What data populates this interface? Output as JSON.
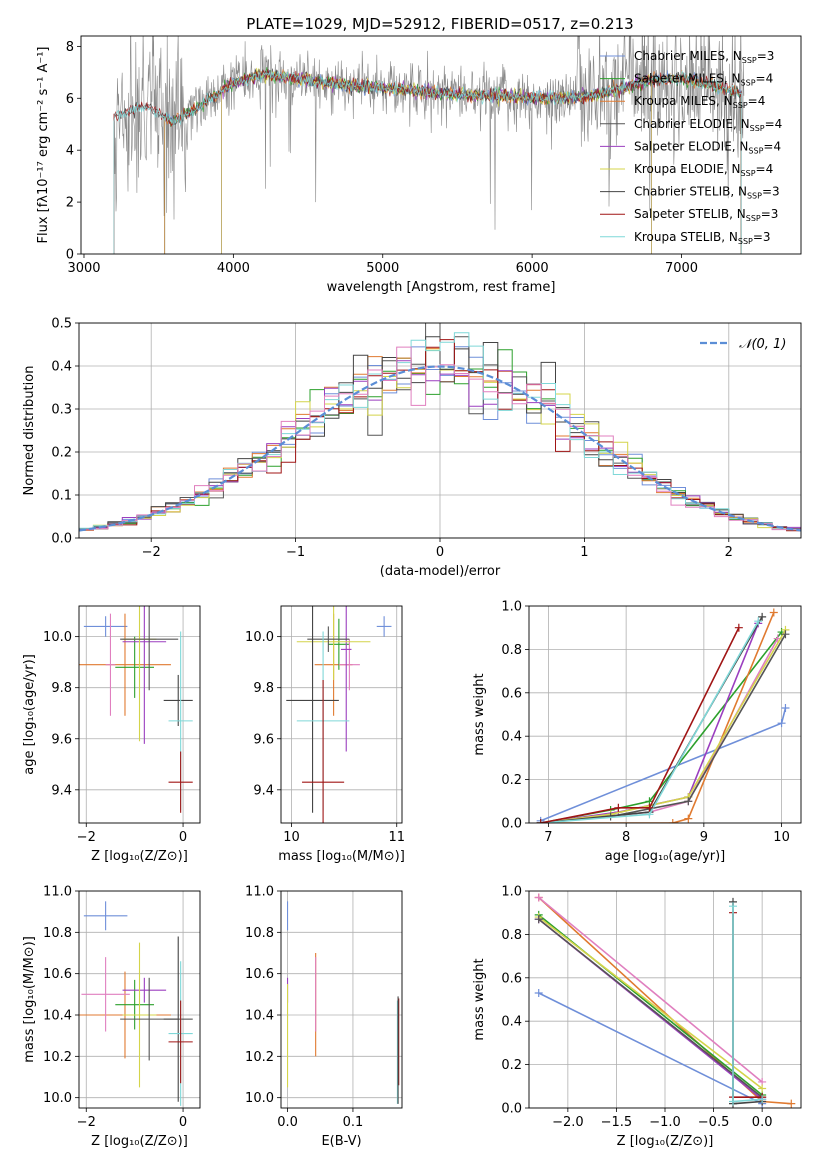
{
  "figure_title": "PLATE=1029, MJD=52912, FIBERID=0517, z=0.213",
  "colors": {
    "chabrier_miles": "#6f8fd9",
    "salpeter_miles": "#2ca02c",
    "kroupa_miles": "#e07a30",
    "chabrier_elodie": "#555555",
    "salpeter_elodie": "#9b3fbf",
    "kroupa_elodie": "#d4d44a",
    "chabrier_stelib": "#444444",
    "salpeter_stelib": "#a01515",
    "kroupa_stelib": "#7fd8d8",
    "pink": "#e07fbf",
    "spectrum_gray": "#888888",
    "gaussian": "#5b8ed6",
    "grid": "#b0b0b0"
  },
  "chart_data": [
    {
      "id": "spectrum",
      "type": "line",
      "title": "PLATE=1029, MJD=52912, FIBERID=0517, z=0.213",
      "xlabel": "wavelength [Angstrom, rest frame]",
      "ylabel": "Flux [fλ10⁻¹⁷ erg cm⁻² s⁻¹ A⁻¹]",
      "xlim": [
        2980,
        7800
      ],
      "ylim": [
        0,
        8.4
      ],
      "xticks": [
        "3000",
        "4000",
        "5000",
        "6000",
        "7000"
      ],
      "xtick_values": [
        3000,
        4000,
        5000,
        6000,
        7000
      ],
      "yticks": [
        "0",
        "2",
        "4",
        "6",
        "8"
      ],
      "ytick_values": [
        0,
        2,
        4,
        6,
        8
      ],
      "grid": false,
      "legend_position": "upper-right",
      "series": [
        {
          "name": "Chabrier MILES, N_SSP=3",
          "start": 3540,
          "end": 7400
        },
        {
          "name": "Salpeter MILES, N_SSP=4",
          "start": 3540,
          "end": 7400
        },
        {
          "name": "Kroupa MILES, N_SSP=4",
          "start": 3540,
          "end": 7400
        },
        {
          "name": "Chabrier ELODIE, N_SSP=4",
          "start": 3920,
          "end": 6800
        },
        {
          "name": "Salpeter ELODIE, N_SSP=4",
          "start": 3920,
          "end": 6800
        },
        {
          "name": "Kroupa ELODIE, N_SSP=4",
          "start": 3920,
          "end": 6800
        },
        {
          "name": "Chabrier STELIB, N_SSP=3",
          "start": 3200,
          "end": 7400
        },
        {
          "name": "Salpeter STELIB, N_SSP=3",
          "start": 3200,
          "end": 7400
        },
        {
          "name": "Kroupa STELIB, N_SSP=3",
          "start": 3200,
          "end": 7400
        }
      ],
      "continuum": [
        [
          3200,
          5.3
        ],
        [
          3400,
          5.7
        ],
        [
          3600,
          5.1
        ],
        [
          3800,
          5.8
        ],
        [
          4000,
          6.6
        ],
        [
          4200,
          6.9
        ],
        [
          4400,
          6.8
        ],
        [
          4600,
          6.6
        ],
        [
          4800,
          6.5
        ],
        [
          5000,
          6.4
        ],
        [
          5200,
          6.3
        ],
        [
          5400,
          6.2
        ],
        [
          5600,
          6.1
        ],
        [
          5800,
          6.1
        ],
        [
          6000,
          6.0
        ],
        [
          6200,
          6.0
        ],
        [
          6400,
          6.1
        ],
        [
          6600,
          6.4
        ],
        [
          6800,
          6.7
        ],
        [
          7000,
          6.8
        ],
        [
          7200,
          6.5
        ],
        [
          7400,
          6.2
        ]
      ],
      "observed_noise_amplitude": 0.55
    },
    {
      "id": "residuals",
      "type": "histogram",
      "xlabel": "(data-model)/error",
      "ylabel": "Normed distribution",
      "xlim": [
        -2.5,
        2.5
      ],
      "ylim": [
        0,
        0.5
      ],
      "xticks": [
        "−2",
        "−1",
        "0",
        "1",
        "2"
      ],
      "xtick_values": [
        -2,
        -1,
        0,
        1,
        2
      ],
      "yticks": [
        "0.0",
        "0.1",
        "0.2",
        "0.3",
        "0.4",
        "0.5"
      ],
      "ytick_values": [
        0,
        0.1,
        0.2,
        0.3,
        0.4,
        0.5
      ],
      "grid": true,
      "legend": [
        {
          "name": "𝒩(0, 1)"
        }
      ],
      "legend_position": "upper-right",
      "bin_width": 0.1,
      "n_bins": 50
    },
    {
      "id": "age_vs_Z",
      "type": "errorbar",
      "xlabel": "Z [log₁₀(Z/Z⊙)]",
      "ylabel": "age  [log₁₀(age/yr)]",
      "xlim": [
        -2.15,
        0.35
      ],
      "ylim": [
        9.27,
        10.12
      ],
      "xticks": [
        "−2",
        "0"
      ],
      "xtick_values": [
        -2,
        0
      ],
      "yticks": [
        "9.4",
        "9.6",
        "9.8",
        "10.0"
      ],
      "ytick_values": [
        9.4,
        9.6,
        9.8,
        10.0
      ],
      "grid": true,
      "points": [
        {
          "c": "chabrier_miles",
          "x": -1.6,
          "xe": 0.45,
          "y": 10.04,
          "ye": 0.04
        },
        {
          "c": "kroupa_miles",
          "x": -1.2,
          "xe": 0.95,
          "y": 9.89,
          "ye": 0.2
        },
        {
          "c": "salpeter_miles",
          "x": -1.0,
          "xe": 0.4,
          "y": 9.88,
          "ye": 0.12
        },
        {
          "c": "pink",
          "x": -1.5,
          "xe": 0.1,
          "y": 9.89,
          "ye": 0.2
        },
        {
          "c": "salpeter_elodie",
          "x": -0.8,
          "xe": 0.45,
          "y": 9.98,
          "ye": 0.4
        },
        {
          "c": "kroupa_elodie",
          "x": -0.9,
          "xe": 0.35,
          "y": 9.99,
          "ye": 0.4
        },
        {
          "c": "chabrier_elodie",
          "x": -0.7,
          "xe": 0.6,
          "y": 9.99,
          "ye": 0.2
        },
        {
          "c": "chabrier_stelib",
          "x": -0.1,
          "xe": 0.3,
          "y": 9.75,
          "ye": 0.1
        },
        {
          "c": "kroupa_stelib",
          "x": -0.05,
          "xe": 0.25,
          "y": 9.67,
          "ye": 0.35
        },
        {
          "c": "salpeter_stelib",
          "x": -0.05,
          "xe": 0.25,
          "y": 9.43,
          "ye": 0.12
        }
      ]
    },
    {
      "id": "age_vs_mass",
      "type": "errorbar",
      "xlabel": "mass [log₁₀(M/M⊙)]",
      "ylabel": "",
      "xlim": [
        9.9,
        11.05
      ],
      "ylim": [
        9.27,
        10.12
      ],
      "xticks": [
        "10",
        "11"
      ],
      "xtick_values": [
        10,
        11
      ],
      "yticks": [
        "9.4",
        "9.6",
        "9.8",
        "10.0"
      ],
      "ytick_values": [
        9.4,
        9.6,
        9.8,
        10.0
      ],
      "grid": true,
      "points": [
        {
          "c": "chabrier_miles",
          "x": 10.88,
          "xe": 0.07,
          "y": 10.04,
          "ye": 0.04
        },
        {
          "c": "kroupa_miles",
          "x": 10.4,
          "xe": 0.18,
          "y": 9.89,
          "ye": 0.2
        },
        {
          "c": "salpeter_miles",
          "x": 10.45,
          "xe": 0.1,
          "y": 9.97,
          "ye": 0.1
        },
        {
          "c": "pink",
          "x": 10.55,
          "xe": 0.1,
          "y": 9.89,
          "ye": 0.1
        },
        {
          "c": "salpeter_elodie",
          "x": 10.52,
          "xe": 0.05,
          "y": 9.95,
          "ye": 0.4
        },
        {
          "c": "kroupa_elodie",
          "x": 10.4,
          "xe": 0.35,
          "y": 9.98,
          "ye": 0.15
        },
        {
          "c": "chabrier_elodie",
          "x": 10.35,
          "xe": 0.2,
          "y": 9.99,
          "ye": 0.05
        },
        {
          "c": "chabrier_stelib",
          "x": 10.2,
          "xe": 0.25,
          "y": 9.75,
          "ye": 0.44
        },
        {
          "c": "kroupa_stelib",
          "x": 10.3,
          "xe": 0.25,
          "y": 9.67,
          "ye": 0.35
        },
        {
          "c": "salpeter_stelib",
          "x": 10.3,
          "xe": 0.2,
          "y": 9.43,
          "ye": 0.4
        }
      ]
    },
    {
      "id": "weight_vs_age",
      "type": "line",
      "xlabel": "age  [log₁₀(age/yr)]",
      "ylabel": "mass weight",
      "xlim": [
        6.75,
        10.25
      ],
      "ylim": [
        0,
        1.0
      ],
      "xticks": [
        "7",
        "8",
        "9",
        "10"
      ],
      "xtick_values": [
        7,
        8,
        9,
        10
      ],
      "yticks": [
        "0.0",
        "0.2",
        "0.4",
        "0.6",
        "0.8",
        "1.0"
      ],
      "ytick_values": [
        0,
        0.2,
        0.4,
        0.6,
        0.8,
        1.0
      ],
      "grid": true,
      "series": [
        {
          "c": "chabrier_miles",
          "points": [
            [
              6.9,
              0.01
            ],
            [
              10.0,
              0.46
            ],
            [
              10.05,
              0.53
            ]
          ]
        },
        {
          "c": "salpeter_miles",
          "points": [
            [
              6.9,
              0.0
            ],
            [
              7.8,
              0.06
            ],
            [
              8.3,
              0.1
            ],
            [
              10.0,
              0.88
            ]
          ]
        },
        {
          "c": "kroupa_miles",
          "points": [
            [
              6.9,
              0.0
            ],
            [
              8.6,
              0.0
            ],
            [
              8.8,
              0.02
            ],
            [
              9.9,
              0.97
            ]
          ]
        },
        {
          "c": "pink",
          "points": [
            [
              6.9,
              0.0
            ],
            [
              8.3,
              0.05
            ],
            [
              8.8,
              0.1
            ],
            [
              9.95,
              0.85
            ]
          ]
        },
        {
          "c": "salpeter_elodie",
          "points": [
            [
              6.9,
              0.0
            ],
            [
              7.9,
              0.05
            ],
            [
              8.8,
              0.12
            ],
            [
              9.7,
              0.92
            ]
          ]
        },
        {
          "c": "kroupa_elodie",
          "points": [
            [
              6.9,
              0.0
            ],
            [
              7.8,
              0.04
            ],
            [
              8.8,
              0.12
            ],
            [
              10.05,
              0.89
            ]
          ]
        },
        {
          "c": "chabrier_elodie",
          "points": [
            [
              6.9,
              0.0
            ],
            [
              7.8,
              0.03
            ],
            [
              8.8,
              0.1
            ],
            [
              10.05,
              0.87
            ]
          ]
        },
        {
          "c": "chabrier_stelib",
          "points": [
            [
              6.9,
              0.0
            ],
            [
              8.3,
              0.05
            ],
            [
              9.75,
              0.95
            ]
          ]
        },
        {
          "c": "kroupa_stelib",
          "points": [
            [
              6.9,
              0.0
            ],
            [
              8.3,
              0.04
            ],
            [
              9.7,
              0.93
            ]
          ]
        },
        {
          "c": "salpeter_stelib",
          "points": [
            [
              6.9,
              0.0
            ],
            [
              7.9,
              0.07
            ],
            [
              8.3,
              0.07
            ],
            [
              9.45,
              0.9
            ]
          ]
        }
      ]
    },
    {
      "id": "mass_vs_Z",
      "type": "errorbar",
      "xlabel": "Z [log₁₀(Z/Z⊙)]",
      "ylabel": "mass [log₁₀(M/M⊙)]",
      "xlim": [
        -2.15,
        0.35
      ],
      "ylim": [
        9.95,
        11.0
      ],
      "xticks": [
        "−2",
        "0"
      ],
      "xtick_values": [
        -2,
        0
      ],
      "yticks": [
        "10.0",
        "10.2",
        "10.4",
        "10.6",
        "10.8",
        "11.0"
      ],
      "ytick_values": [
        10.0,
        10.2,
        10.4,
        10.6,
        10.8,
        11.0
      ],
      "grid": true,
      "points": [
        {
          "c": "chabrier_miles",
          "x": -1.6,
          "xe": 0.45,
          "y": 10.88,
          "ye": 0.07
        },
        {
          "c": "kroupa_miles",
          "x": -1.2,
          "xe": 0.95,
          "y": 10.4,
          "ye": 0.21
        },
        {
          "c": "salpeter_miles",
          "x": -1.0,
          "xe": 0.4,
          "y": 10.45,
          "ye": 0.12
        },
        {
          "c": "pink",
          "x": -1.6,
          "xe": 0.5,
          "y": 10.5,
          "ye": 0.18
        },
        {
          "c": "salpeter_elodie",
          "x": -0.8,
          "xe": 0.45,
          "y": 10.52,
          "ye": 0.06
        },
        {
          "c": "kroupa_elodie",
          "x": -0.9,
          "xe": 0.35,
          "y": 10.4,
          "ye": 0.35
        },
        {
          "c": "chabrier_elodie",
          "x": -0.7,
          "xe": 0.6,
          "y": 10.38,
          "ye": 0.2
        },
        {
          "c": "chabrier_stelib",
          "x": -0.1,
          "xe": 0.3,
          "y": 10.38,
          "ye": 0.4
        },
        {
          "c": "kroupa_stelib",
          "x": -0.05,
          "xe": 0.25,
          "y": 10.31,
          "ye": 0.35
        },
        {
          "c": "salpeter_stelib",
          "x": -0.05,
          "xe": 0.25,
          "y": 10.27,
          "ye": 0.2
        }
      ]
    },
    {
      "id": "mass_vs_ebv",
      "type": "errorbar",
      "xlabel": "E(B-V)",
      "ylabel": "",
      "xlim": [
        -0.01,
        0.175
      ],
      "ylim": [
        9.95,
        11.0
      ],
      "xticks": [
        "0.0",
        "0.1"
      ],
      "xtick_values": [
        0.0,
        0.1
      ],
      "yticks": [
        "10.0",
        "10.2",
        "10.4",
        "10.6",
        "10.8",
        "11.0"
      ],
      "ytick_values": [
        10.0,
        10.2,
        10.4,
        10.6,
        10.8,
        11.0
      ],
      "grid": true,
      "points": [
        {
          "c": "chabrier_miles",
          "x": 0.0,
          "xe": 0.0,
          "y": 10.88,
          "ye": 0.07
        },
        {
          "c": "salpeter_elodie",
          "x": 0.0,
          "xe": 0.0,
          "y": 10.52,
          "ye": 0.06
        },
        {
          "c": "kroupa_elodie",
          "x": 0.0,
          "xe": 0.0,
          "y": 10.3,
          "ye": 0.25
        },
        {
          "c": "kroupa_miles",
          "x": 0.043,
          "xe": 0.0,
          "y": 10.45,
          "ye": 0.25
        },
        {
          "c": "pink",
          "x": 0.043,
          "xe": 0.0,
          "y": 10.5,
          "ye": 0.18
        },
        {
          "c": "salpeter_stelib",
          "x": 0.17,
          "xe": 0.0,
          "y": 10.27,
          "ye": 0.21
        },
        {
          "c": "kroupa_stelib",
          "x": 0.168,
          "xe": 0.0,
          "y": 10.22,
          "ye": 0.25
        },
        {
          "c": "chabrier_stelib",
          "x": 0.169,
          "xe": 0.0,
          "y": 10.23,
          "ye": 0.26
        }
      ]
    },
    {
      "id": "weight_vs_Z",
      "type": "line",
      "xlabel": "Z [log₁₀(Z/Z⊙)]",
      "ylabel": "mass weight",
      "xlim": [
        -2.4,
        0.4
      ],
      "ylim": [
        0,
        1.0
      ],
      "xticks": [
        "−2.0",
        "−1.5",
        "−1.0",
        "−0.5",
        "0.0"
      ],
      "xtick_values": [
        -2.0,
        -1.5,
        -1.0,
        -0.5,
        0.0
      ],
      "yticks": [
        "0.0",
        "0.2",
        "0.4",
        "0.6",
        "0.8",
        "1.0"
      ],
      "ytick_values": [
        0,
        0.2,
        0.4,
        0.6,
        0.8,
        1.0
      ],
      "grid": true,
      "series": [
        {
          "c": "chabrier_miles",
          "points": [
            [
              -2.3,
              0.53
            ],
            [
              0.0,
              0.02
            ]
          ]
        },
        {
          "c": "kroupa_miles",
          "points": [
            [
              -2.3,
              0.97
            ],
            [
              0.0,
              0.03
            ],
            [
              0.3,
              0.02
            ]
          ]
        },
        {
          "c": "pink",
          "points": [
            [
              -2.3,
              0.97
            ],
            [
              0.0,
              0.12
            ]
          ]
        },
        {
          "c": "salpeter_miles",
          "points": [
            [
              -2.3,
              0.89
            ],
            [
              0.0,
              0.06
            ]
          ]
        },
        {
          "c": "kroupa_elodie",
          "points": [
            [
              -2.3,
              0.88
            ],
            [
              0.0,
              0.09
            ]
          ]
        },
        {
          "c": "salpeter_elodie",
          "points": [
            [
              -2.3,
              0.87
            ],
            [
              0.0,
              0.04
            ]
          ]
        },
        {
          "c": "chabrier_elodie",
          "points": [
            [
              -2.3,
              0.87
            ],
            [
              0.0,
              0.05
            ]
          ]
        },
        {
          "c": "salpeter_stelib",
          "points": [
            [
              -0.3,
              0.9
            ],
            [
              -0.3,
              0.05
            ],
            [
              0.0,
              0.05
            ]
          ]
        },
        {
          "c": "chabrier_stelib",
          "points": [
            [
              -0.3,
              0.95
            ],
            [
              -0.3,
              0.02
            ],
            [
              0.0,
              0.03
            ]
          ]
        },
        {
          "c": "kroupa_stelib",
          "points": [
            [
              -0.3,
              0.93
            ],
            [
              -0.3,
              0.03
            ],
            [
              0.0,
              0.04
            ]
          ]
        }
      ]
    }
  ]
}
